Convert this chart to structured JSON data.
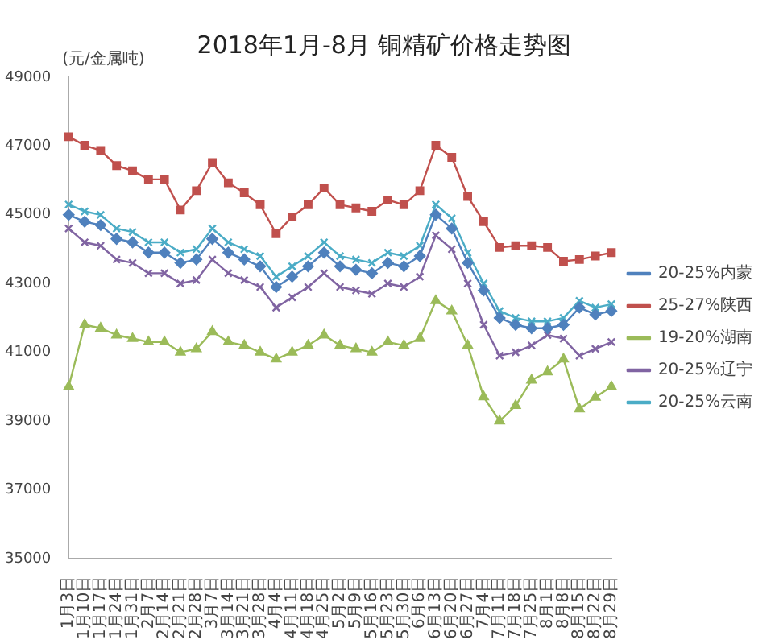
{
  "chart_data": {
    "type": "line",
    "title": "2018年1月-8月 铜精矿价格走势图",
    "ylabel": "(元/金属吨)",
    "categories": [
      "1月3日",
      "1月10日",
      "1月17日",
      "1月24日",
      "1月31日",
      "2月7日",
      "2月14日",
      "2月21日",
      "2月28日",
      "3月7日",
      "3月14日",
      "3月21日",
      "3月28日",
      "4月4日",
      "4月11日",
      "4月18日",
      "4月25日",
      "5月2日",
      "5月9日",
      "5月16日",
      "5月23日",
      "5月30日",
      "6月6日",
      "6月13日",
      "6月20日",
      "6月27日",
      "7月4日",
      "7月11日",
      "7月18日",
      "7月25日",
      "8月1日",
      "8月8日",
      "8月15日",
      "8月22日",
      "8月29日"
    ],
    "ylim": [
      35000,
      49000
    ],
    "yticks": [
      35000,
      37000,
      39000,
      41000,
      43000,
      45000,
      47000,
      49000
    ],
    "grid": false,
    "legend": "right",
    "series": [
      {
        "name": "20-25%内蒙",
        "color": "#4f81bd",
        "marker": "diamond",
        "values": [
          45000,
          44800,
          44700,
          44300,
          44200,
          43900,
          43900,
          43600,
          43700,
          44300,
          43900,
          43700,
          43500,
          42900,
          43200,
          43500,
          43900,
          43500,
          43400,
          43300,
          43600,
          43500,
          43800,
          45000,
          44600,
          43600,
          42800,
          42000,
          41800,
          41700,
          41700,
          41800,
          42300,
          42100,
          42200
        ]
      },
      {
        "name": "25-27%陕西",
        "color": "#c0504d",
        "marker": "square",
        "values": [
          47270,
          47020,
          46870,
          46430,
          46280,
          46030,
          46030,
          45140,
          45700,
          46520,
          45930,
          45640,
          45290,
          44450,
          44940,
          45290,
          45780,
          45290,
          45200,
          45100,
          45430,
          45290,
          45700,
          47020,
          46670,
          45530,
          44800,
          44050,
          44100,
          44100,
          44050,
          43650,
          43700,
          43800,
          43900
        ]
      },
      {
        "name": "19-20%湖南",
        "color": "#9bbb59",
        "marker": "triangle",
        "values": [
          40000,
          41800,
          41700,
          41500,
          41400,
          41300,
          41300,
          41000,
          41100,
          41600,
          41300,
          41200,
          41000,
          40800,
          41000,
          41200,
          41500,
          41200,
          41100,
          41000,
          41300,
          41200,
          41400,
          42500,
          42200,
          41200,
          39700,
          39000,
          39450,
          40190,
          40430,
          40800,
          39350,
          39690,
          40000
        ]
      },
      {
        "name": "20-25%辽宁",
        "color": "#8064a2",
        "marker": "cross",
        "values": [
          44600,
          44200,
          44100,
          43700,
          43600,
          43300,
          43300,
          43000,
          43100,
          43700,
          43300,
          43100,
          42900,
          42300,
          42600,
          42900,
          43300,
          42900,
          42800,
          42700,
          43000,
          42900,
          43200,
          44400,
          44000,
          43000,
          41800,
          40900,
          41000,
          41200,
          41500,
          41400,
          40900,
          41100,
          41300
        ]
      },
      {
        "name": "20-25%云南",
        "color": "#4bacc6",
        "marker": "cross",
        "values": [
          45300,
          45100,
          45000,
          44600,
          44500,
          44200,
          44200,
          43900,
          44000,
          44600,
          44200,
          44000,
          43800,
          43200,
          43500,
          43800,
          44200,
          43800,
          43700,
          43600,
          43900,
          43800,
          44100,
          45300,
          44900,
          43900,
          43000,
          42200,
          42000,
          41900,
          41900,
          42000,
          42500,
          42300,
          42400
        ]
      }
    ]
  }
}
